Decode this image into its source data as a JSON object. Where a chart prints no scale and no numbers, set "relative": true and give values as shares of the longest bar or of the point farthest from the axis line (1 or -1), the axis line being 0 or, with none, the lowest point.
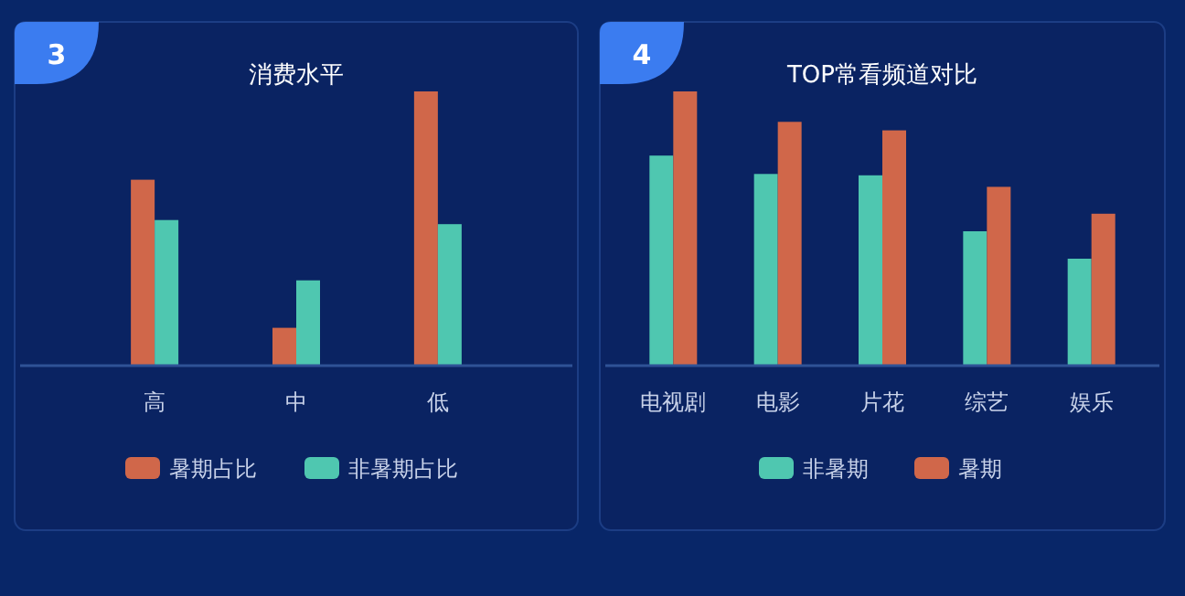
{
  "chart_data": [
    {
      "type": "bar",
      "title": "消费水平",
      "annotations": [
        "3"
      ],
      "relative": true,
      "legend": "bottom",
      "categories": [
        "高",
        "中",
        "低"
      ],
      "series": [
        {
          "name": "暑期占比",
          "color": "#d0674a",
          "values": [
            0.678,
            0.138,
            1
          ]
        },
        {
          "name": "非暑期占比",
          "color": "#4fc7b0",
          "values": [
            0.531,
            0.311,
            0.516
          ]
        }
      ]
    },
    {
      "type": "bar",
      "title": "TOP常看频道对比",
      "annotations": [
        "4"
      ],
      "relative": true,
      "legend": "bottom",
      "categories": [
        "电视剧",
        "电影",
        "片花",
        "综艺",
        "娱乐"
      ],
      "series": [
        {
          "name": "非暑期",
          "color": "#4fc7b0",
          "values": [
            0.766,
            0.699,
            0.694,
            0.49,
            0.39
          ]
        },
        {
          "name": "暑期",
          "color": "#d0674a",
          "values": [
            1,
            0.889,
            0.858,
            0.652,
            0.554
          ]
        }
      ]
    }
  ]
}
